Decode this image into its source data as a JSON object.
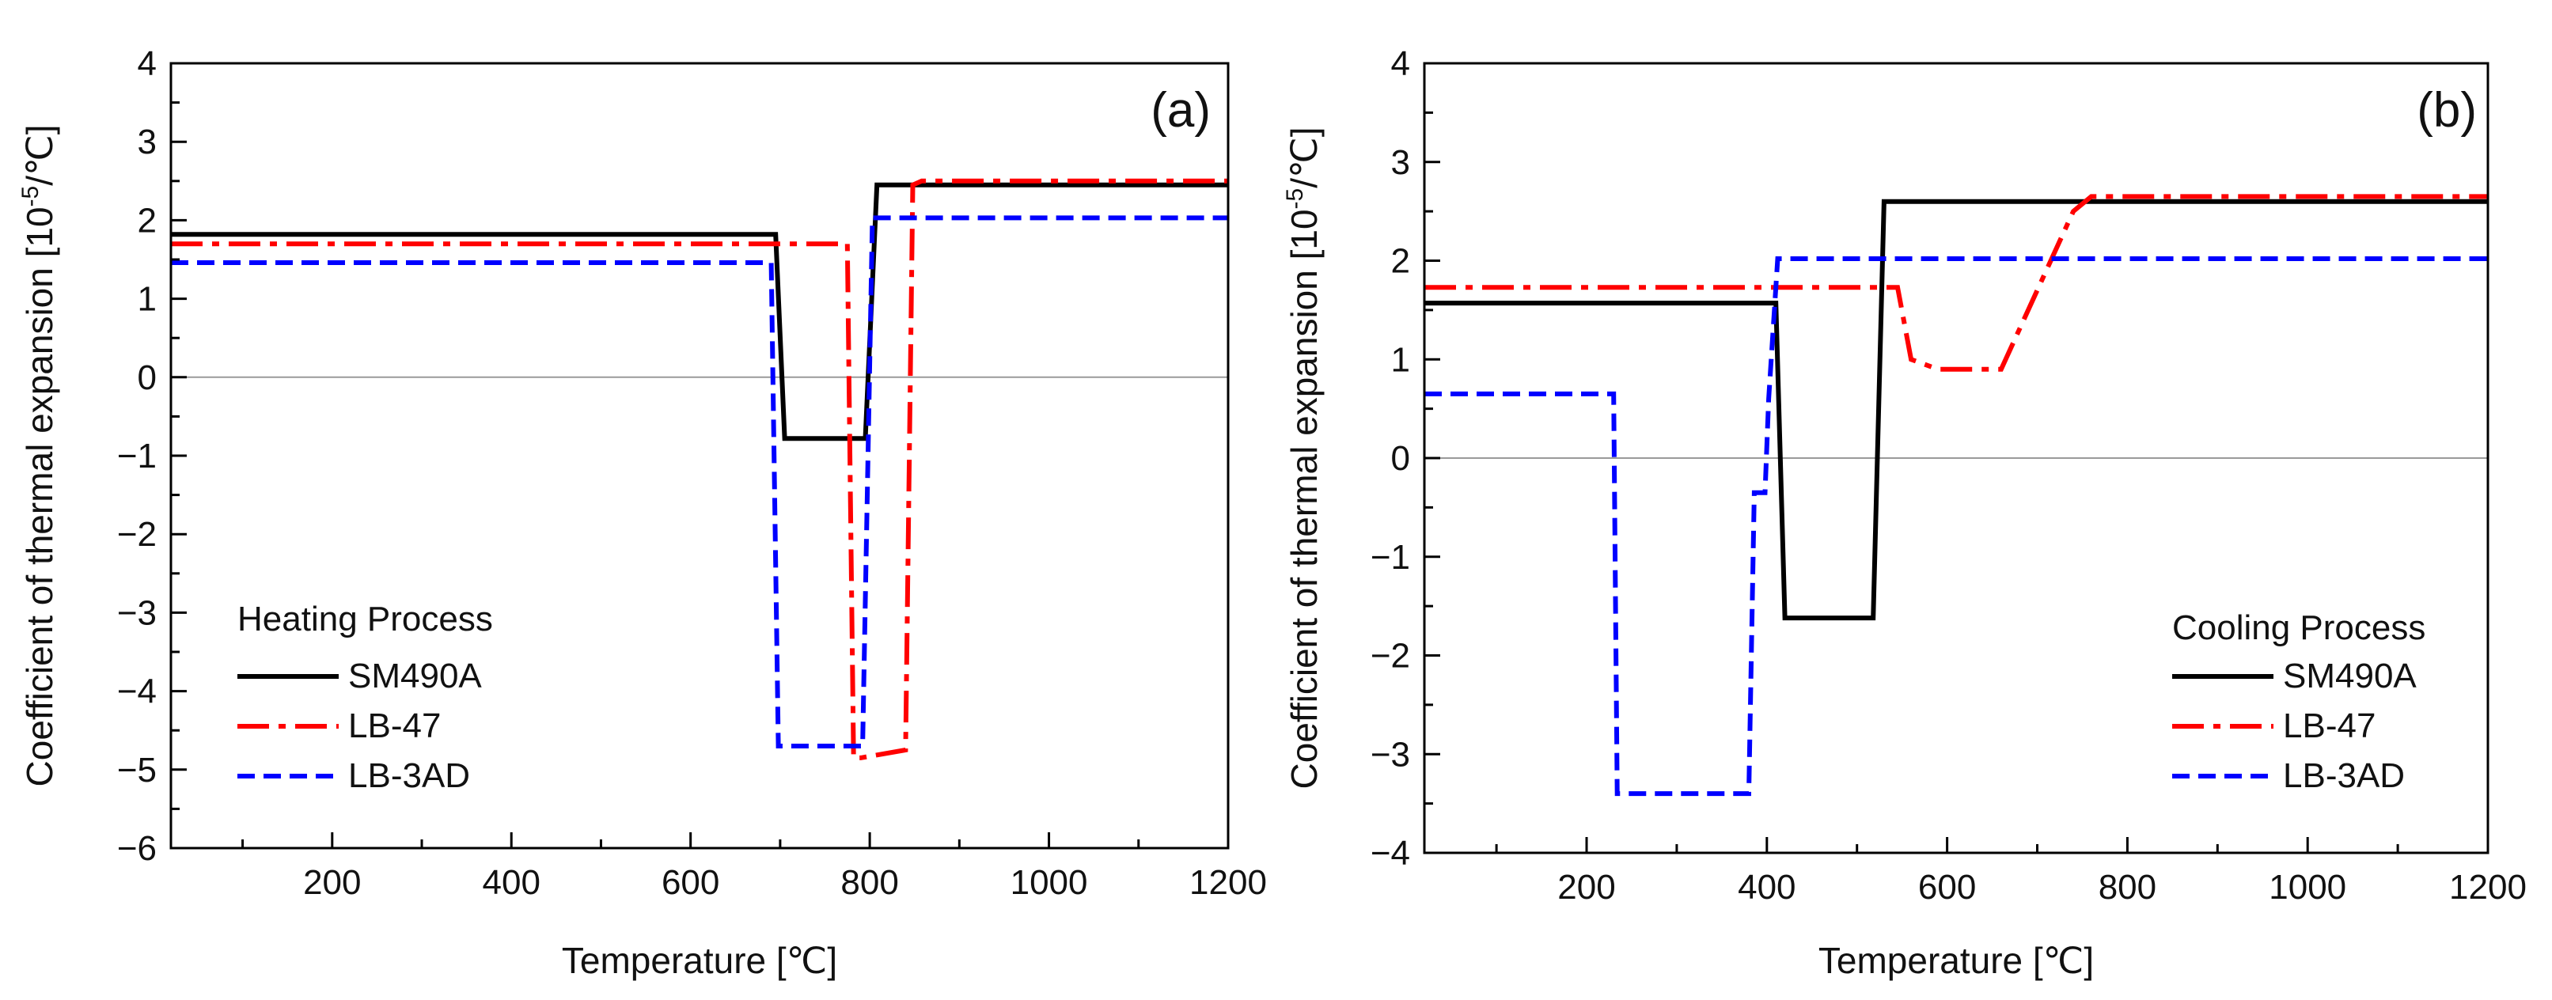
{
  "chart_data": [
    {
      "type": "line",
      "panel_label": "(a)",
      "xlabel": "Temperature [℃]",
      "ylabel": "Coefficient of thermal expansion [10",
      "ylabel_sup": "-5",
      "ylabel_unit": "/℃]",
      "xlim": [
        20,
        1200
      ],
      "ylim": [
        -6,
        4
      ],
      "xticks": [
        200,
        400,
        600,
        800,
        1000,
        1200
      ],
      "xtick_labels": [
        "200",
        "400",
        "600",
        "800",
        "1000",
        "1200"
      ],
      "yticks": [
        -6,
        -5,
        -4,
        -3,
        -2,
        -1,
        0,
        1,
        2,
        3,
        4
      ],
      "ytick_labels": [
        "−6",
        "−5",
        "−4",
        "−3",
        "−2",
        "−1",
        "0",
        "1",
        "2",
        "3",
        "4"
      ],
      "legend_title": "Heating Process",
      "legend_position": "bottom-left",
      "series": [
        {
          "name": "SM490A",
          "color": "#000000",
          "style": "solid",
          "x": [
            20,
            695,
            705,
            795,
            808,
            1200
          ],
          "y": [
            1.82,
            1.82,
            -0.78,
            -0.78,
            2.45,
            2.45
          ]
        },
        {
          "name": "LB-47",
          "color": "#ff0000",
          "style": "dashdot",
          "x": [
            20,
            775,
            782,
            790,
            840,
            848,
            858,
            1200
          ],
          "y": [
            1.7,
            1.7,
            -4.85,
            -4.85,
            -4.75,
            2.45,
            2.5,
            2.5
          ]
        },
        {
          "name": "LB-3AD",
          "color": "#0000ff",
          "style": "dash",
          "x": [
            20,
            690,
            698,
            785,
            792,
            803,
            1200
          ],
          "y": [
            1.46,
            1.46,
            -4.7,
            -4.7,
            -4.7,
            2.03,
            2.03
          ]
        }
      ]
    },
    {
      "type": "line",
      "panel_label": "(b)",
      "xlabel": "Temperature [℃]",
      "ylabel": "Coefficient of thermal expansion [10",
      "ylabel_sup": "-5",
      "ylabel_unit": "/℃]",
      "xlim": [
        20,
        1200
      ],
      "ylim": [
        -4,
        4
      ],
      "xticks": [
        200,
        400,
        600,
        800,
        1000,
        1200
      ],
      "xtick_labels": [
        "200",
        "400",
        "600",
        "800",
        "1000",
        "1200"
      ],
      "yticks": [
        -4,
        -3,
        -2,
        -1,
        0,
        1,
        2,
        3,
        4
      ],
      "ytick_labels": [
        "−4",
        "−3",
        "−2",
        "−1",
        "0",
        "1",
        "2",
        "3",
        "4"
      ],
      "legend_title": "Cooling Process",
      "legend_position": "bottom-right",
      "series": [
        {
          "name": "SM490A",
          "color": "#000000",
          "style": "solid",
          "x": [
            20,
            410,
            420,
            518,
            530,
            1200
          ],
          "y": [
            1.57,
            1.57,
            -1.62,
            -1.62,
            2.6,
            2.6
          ]
        },
        {
          "name": "LB-47",
          "color": "#ff0000",
          "style": "dashdot",
          "x": [
            20,
            545,
            560,
            590,
            660,
            700,
            740,
            760,
            1200
          ],
          "y": [
            1.73,
            1.73,
            1.0,
            0.9,
            0.9,
            1.7,
            2.5,
            2.65,
            2.65
          ]
        },
        {
          "name": "LB-3AD",
          "color": "#0000ff",
          "style": "dash",
          "x": [
            20,
            230,
            234,
            380,
            386,
            398,
            402,
            412,
            1200
          ],
          "y": [
            0.65,
            0.65,
            -3.4,
            -3.4,
            -0.35,
            -0.35,
            0.6,
            2.02,
            2.02
          ]
        }
      ]
    }
  ]
}
